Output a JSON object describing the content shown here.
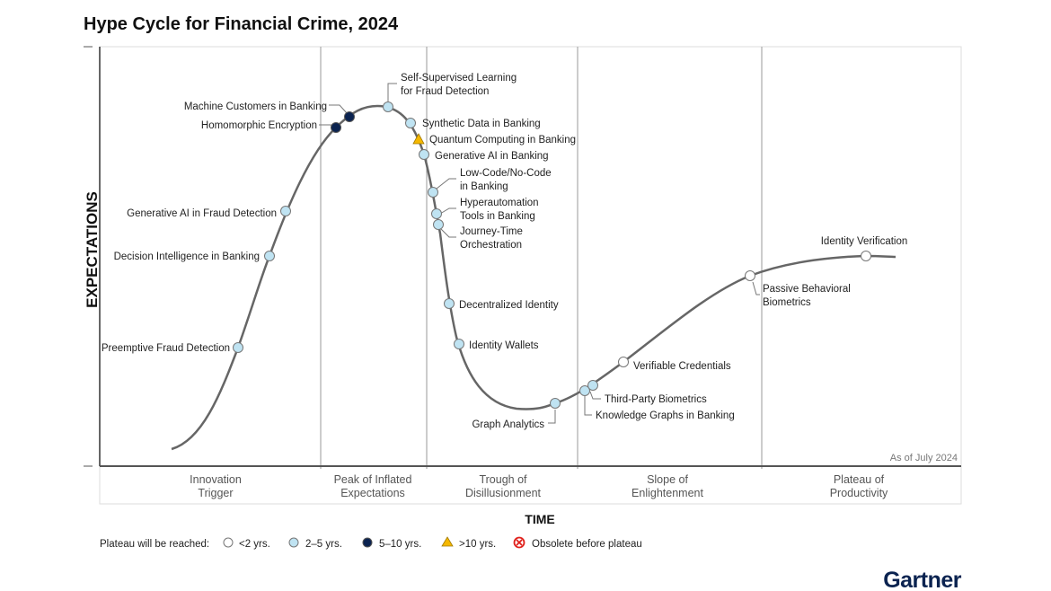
{
  "title": "Hype Cycle for Financial Crime, 2024",
  "y_axis_label": "EXPECTATIONS",
  "x_axis_label": "TIME",
  "as_of": "As of July 2024",
  "phases": [
    [
      "Innovation",
      "Trigger"
    ],
    [
      "Peak of Inflated",
      "Expectations"
    ],
    [
      "Trough of",
      "Disillusionment"
    ],
    [
      "Slope of",
      "Enlightenment"
    ],
    [
      "Plateau of",
      "Productivity"
    ]
  ],
  "technologies": [
    {
      "name": "Preemptive Fraud Detection",
      "phase": "Innovation Trigger",
      "plateau": "2-5 yrs"
    },
    {
      "name": "Decision Intelligence in Banking",
      "phase": "Innovation Trigger",
      "plateau": "2-5 yrs"
    },
    {
      "name": "Generative AI in Fraud Detection",
      "phase": "Innovation Trigger",
      "plateau": "2-5 yrs"
    },
    {
      "name": "Homomorphic Encryption",
      "phase": "Peak of Inflated Expectations",
      "plateau": "5-10 yrs"
    },
    {
      "name": "Machine Customers in Banking",
      "phase": "Peak of Inflated Expectations",
      "plateau": "5-10 yrs"
    },
    {
      "name": [
        "Self-Supervised Learning",
        "for Fraud Detection"
      ],
      "phase": "Peak of Inflated Expectations",
      "plateau": "2-5 yrs"
    },
    {
      "name": "Synthetic Data in Banking",
      "phase": "Peak of Inflated Expectations",
      "plateau": "2-5 yrs"
    },
    {
      "name": "Quantum Computing in Banking",
      "phase": "Peak of Inflated Expectations",
      "plateau": ">10 yrs"
    },
    {
      "name": "Generative AI in Banking",
      "phase": "Peak of Inflated Expectations",
      "plateau": "2-5 yrs"
    },
    {
      "name": [
        "Low-Code/No-Code",
        "in Banking"
      ],
      "phase": "Trough of Disillusionment",
      "plateau": "2-5 yrs"
    },
    {
      "name": [
        "Hyperautomation",
        "Tools in Banking"
      ],
      "phase": "Trough of Disillusionment",
      "plateau": "2-5 yrs"
    },
    {
      "name": [
        "Journey-Time",
        "Orchestration"
      ],
      "phase": "Trough of Disillusionment",
      "plateau": "2-5 yrs"
    },
    {
      "name": "Decentralized Identity",
      "phase": "Trough of Disillusionment",
      "plateau": "2-5 yrs"
    },
    {
      "name": "Identity Wallets",
      "phase": "Trough of Disillusionment",
      "plateau": "2-5 yrs"
    },
    {
      "name": "Graph Analytics",
      "phase": "Trough of Disillusionment",
      "plateau": "2-5 yrs"
    },
    {
      "name": "Third-Party Biometrics",
      "phase": "Slope of Enlightenment",
      "plateau": "2-5 yrs"
    },
    {
      "name": "Knowledge Graphs in Banking",
      "phase": "Slope of Enlightenment",
      "plateau": "2-5 yrs"
    },
    {
      "name": "Verifiable Credentials",
      "phase": "Slope of Enlightenment",
      "plateau": "<2 yrs"
    },
    {
      "name": [
        "Passive Behavioral",
        "Biometrics"
      ],
      "phase": "Slope of Enlightenment",
      "plateau": "<2 yrs"
    },
    {
      "name": "Identity Verification",
      "phase": "Plateau of Productivity",
      "plateau": "<2 yrs"
    }
  ],
  "legend": {
    "title": "Plateau will be reached:",
    "items": [
      "<2 yrs.",
      "2–5 yrs.",
      "5–10 yrs.",
      ">10 yrs.",
      "Obsolete before plateau"
    ]
  },
  "brand": "Gartner",
  "colors": {
    "2-5": "#bfe3f2",
    "5-10": "#0b2350",
    "gt10": "#f5b800",
    "obsolete": "#e0201b",
    "brand": "#0b2350"
  }
}
